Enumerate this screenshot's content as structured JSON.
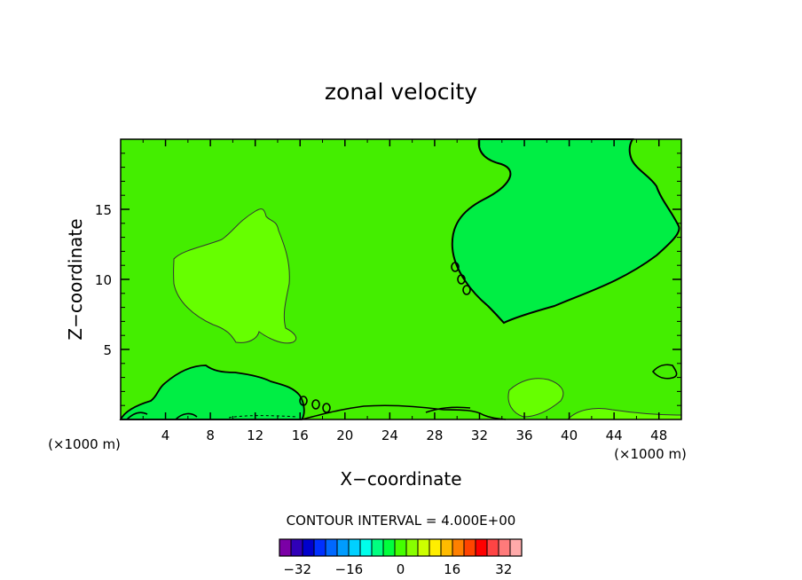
{
  "chart_data": {
    "type": "contour",
    "title": "zonal velocity",
    "xlabel": "X−coordinate",
    "ylabel": "Z−coordinate",
    "x_unit": "(×1000 m)",
    "x_unit_right": "(×1000 m)",
    "xlim": [
      0,
      50
    ],
    "ylim": [
      0,
      20
    ],
    "x_ticks": [
      4,
      8,
      12,
      16,
      20,
      24,
      28,
      32,
      36,
      40,
      44,
      48
    ],
    "y_ticks": [
      5,
      10,
      15
    ],
    "contour_interval_text": "CONTOUR INTERVAL = 4.000E+00",
    "contour_interval": 4,
    "colorbar": {
      "levels": [
        -34,
        -30,
        -26,
        -22,
        -18,
        -14,
        -10,
        -6,
        -2,
        2,
        6,
        10,
        14,
        18,
        22,
        26,
        30,
        34
      ],
      "colors": [
        "#7b00a6",
        "#3000b8",
        "#0000cc",
        "#0030ff",
        "#0068ff",
        "#009cff",
        "#00d0ff",
        "#00ffea",
        "#00ff80",
        "#00ff3c",
        "#44ff00",
        "#88ff00",
        "#ccff00",
        "#ffee00",
        "#ffbb00",
        "#ff8000",
        "#ff4400",
        "#ff0000",
        "#ff4444",
        "#ff7a7a",
        "#ffaaaa"
      ],
      "labels": [
        "−32",
        "−16",
        "0",
        "16",
        "32"
      ]
    },
    "field": {
      "background_value": 0,
      "colors": {
        "background": "#44ee00",
        "positive_region": "#66ff00",
        "negative_region": "#00ee44"
      },
      "regions": [
        {
          "sign": "positive",
          "description": "x≈7–15, z≈6–15"
        },
        {
          "sign": "negative",
          "description": "x≈29–50, z≈7–20"
        },
        {
          "sign": "negative",
          "description": "x≈3–15, z≈0–4"
        },
        {
          "sign": "positive",
          "description": "x≈33–39, z≈1–3"
        }
      ]
    }
  }
}
